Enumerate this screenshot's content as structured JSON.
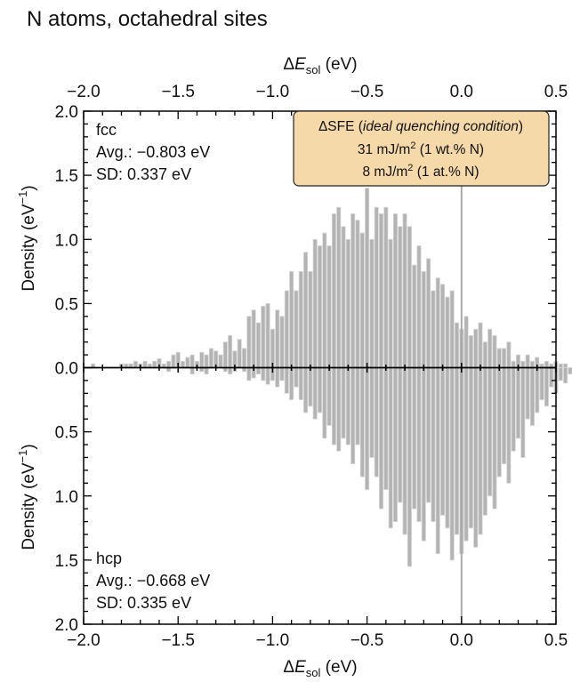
{
  "figure_title": "N atoms, octahedral sites",
  "annotation_box": {
    "line1_prefix": "ΔSFE (",
    "line1_italic": "ideal quenching condition",
    "line1_suffix": ")",
    "line2_value": "31 mJ/m",
    "line2_sup": "2",
    "line2_rest": " (1 wt.% N)",
    "line3_value": "8 mJ/m",
    "line3_sup": "2",
    "line3_rest": " (1 at.% N)",
    "fill_color": "#f5d9a8"
  },
  "chart_data": {
    "type": "bar",
    "xlabel_prefix": "Δ",
    "xlabel_italic": "E",
    "xlabel_sub": "sol",
    "xlabel_unit": " (eV)",
    "ylabel_text": "Density (eV",
    "ylabel_sup": "−1",
    "ylabel_close": ")",
    "xlim": [
      -2.0,
      0.5
    ],
    "xticks": [
      -2.0,
      -1.5,
      -1.0,
      -0.5,
      0.0,
      0.5
    ],
    "xtick_labels": [
      "−2.0",
      "−1.5",
      "−1.0",
      "−0.5",
      "0.0",
      "0.5"
    ],
    "ylim": [
      0,
      2.0
    ],
    "yticks": [
      0.0,
      0.5,
      1.0,
      1.5,
      2.0
    ],
    "ytick_labels": [
      "0.0",
      "0.5",
      "1.0",
      "1.5",
      "2.0"
    ],
    "bar_color": "#b3b3b3",
    "bar_edge_color": "#d6d6d6",
    "reference_line_x": 0.0,
    "bin_width": 0.025,
    "bin_start": -1.95,
    "panels": [
      {
        "name": "fcc",
        "direction": "up",
        "avg_label": "Avg.: −0.803 eV",
        "sd_label": "SD: 0.337 eV",
        "values": [
          0.03,
          0.0,
          0.0,
          0.0,
          0.0,
          0.0,
          0.03,
          0.03,
          0.03,
          0.05,
          0.03,
          0.05,
          0.03,
          0.05,
          0.07,
          0.03,
          0.05,
          0.1,
          0.12,
          0.05,
          0.08,
          0.1,
          0.05,
          0.12,
          0.1,
          0.15,
          0.13,
          0.1,
          0.2,
          0.25,
          0.13,
          0.22,
          0.15,
          0.4,
          0.45,
          0.35,
          0.48,
          0.5,
          0.3,
          0.45,
          0.4,
          0.6,
          0.75,
          0.6,
          0.75,
          0.9,
          0.75,
          1.0,
          0.95,
          1.05,
          0.95,
          1.2,
          1.25,
          1.1,
          1.0,
          1.2,
          1.15,
          1.05,
          1.4,
          1.0,
          1.25,
          1.2,
          1.25,
          1.0,
          1.2,
          1.1,
          1.2,
          1.1,
          0.8,
          0.95,
          0.75,
          0.85,
          0.6,
          0.7,
          0.65,
          0.55,
          0.6,
          0.35,
          0.3,
          0.4,
          0.25,
          0.3,
          0.35,
          0.2,
          0.3,
          0.25,
          0.15,
          0.15,
          0.2,
          0.05,
          0.1,
          0.05,
          0.1,
          0.05,
          0.08,
          0.03,
          0.05,
          0.03,
          0.05,
          0.03,
          0.03,
          0.0,
          0.03,
          0.03,
          0.0,
          0.0,
          0.03,
          0.03,
          0.03,
          0.0,
          0.03,
          0.0,
          0.0,
          0.0,
          0.0
        ]
      },
      {
        "name": "hcp",
        "direction": "down",
        "avg_label": "Avg.: −0.668 eV",
        "sd_label": "SD: 0.335 eV",
        "values": [
          0.0,
          0.0,
          0.0,
          0.0,
          0.0,
          0.0,
          0.0,
          0.0,
          0.0,
          0.0,
          0.0,
          0.0,
          0.0,
          0.0,
          0.0,
          0.0,
          0.03,
          0.0,
          0.0,
          0.0,
          0.0,
          0.05,
          0.0,
          0.03,
          0.05,
          0.0,
          0.0,
          0.0,
          0.03,
          0.05,
          0.03,
          0.0,
          0.03,
          0.1,
          0.08,
          0.05,
          0.1,
          0.13,
          0.1,
          0.15,
          0.1,
          0.2,
          0.25,
          0.15,
          0.25,
          0.35,
          0.3,
          0.4,
          0.35,
          0.55,
          0.45,
          0.6,
          0.65,
          0.55,
          0.6,
          0.75,
          0.6,
          0.85,
          0.95,
          0.7,
          0.85,
          1.1,
          0.95,
          1.25,
          1.2,
          1.05,
          1.3,
          1.55,
          1.1,
          1.2,
          1.35,
          1.05,
          1.2,
          1.45,
          1.15,
          1.25,
          1.5,
          1.3,
          1.45,
          1.35,
          1.25,
          1.4,
          1.3,
          1.15,
          1.0,
          1.1,
          0.85,
          0.75,
          0.9,
          0.65,
          0.55,
          0.7,
          0.4,
          0.45,
          0.35,
          0.25,
          0.3,
          0.15,
          0.2,
          0.1,
          0.12,
          0.05,
          0.08,
          0.1,
          0.03,
          0.05,
          0.1,
          0.03,
          0.05,
          0.03,
          0.05,
          0.0,
          0.03,
          0.03,
          0.0
        ]
      }
    ]
  }
}
